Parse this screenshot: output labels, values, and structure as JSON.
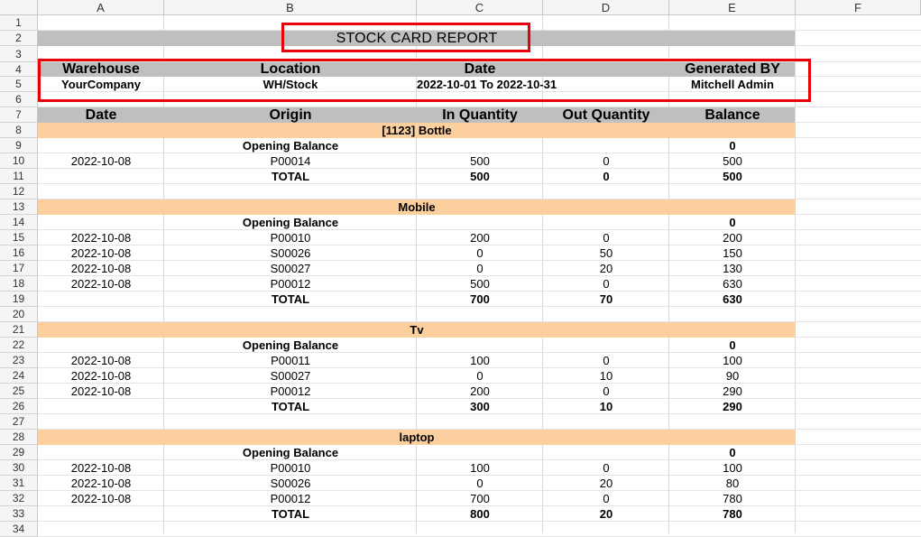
{
  "columns": [
    "A",
    "B",
    "C",
    "D",
    "E",
    "F"
  ],
  "rows": [
    "1",
    "2",
    "3",
    "4",
    "5",
    "6",
    "7",
    "8",
    "9",
    "10",
    "11",
    "12",
    "13",
    "14",
    "15",
    "16",
    "17",
    "18",
    "19",
    "20",
    "21",
    "22",
    "23",
    "24",
    "25",
    "26",
    "27",
    "28",
    "29",
    "30",
    "31",
    "32",
    "33",
    "34"
  ],
  "colors": {
    "header_gray": "#bfbfbf",
    "product_orange": "#fccf9e",
    "annotation_red": "#e8000b"
  },
  "report": {
    "title": "STOCK CARD REPORT",
    "info_headers": [
      "Warehouse",
      "Location",
      "Date",
      "Generated BY"
    ],
    "info_values": [
      "YourCompany",
      "WH/Stock",
      "2022-10-01 To 2022-10-31",
      "Mitchell Admin"
    ],
    "table_headers": [
      "Date",
      "Origin",
      "In Quantity",
      "Out Quantity",
      "Balance"
    ],
    "opening_label": "Opening Balance",
    "total_label": "TOTAL",
    "products": [
      {
        "name": "[1123] Bottle",
        "opening": "0",
        "moves": [
          [
            "2022-10-08",
            "P00014",
            "500",
            "0",
            "500"
          ]
        ],
        "total": [
          "500",
          "0",
          "500"
        ]
      },
      {
        "name": "Mobile",
        "opening": "0",
        "moves": [
          [
            "2022-10-08",
            "P00010",
            "200",
            "0",
            "200"
          ],
          [
            "2022-10-08",
            "S00026",
            "0",
            "50",
            "150"
          ],
          [
            "2022-10-08",
            "S00027",
            "0",
            "20",
            "130"
          ],
          [
            "2022-10-08",
            "P00012",
            "500",
            "0",
            "630"
          ]
        ],
        "total": [
          "700",
          "70",
          "630"
        ]
      },
      {
        "name": "Tv",
        "opening": "0",
        "moves": [
          [
            "2022-10-08",
            "P00011",
            "100",
            "0",
            "100"
          ],
          [
            "2022-10-08",
            "S00027",
            "0",
            "10",
            "90"
          ],
          [
            "2022-10-08",
            "P00012",
            "200",
            "0",
            "290"
          ]
        ],
        "total": [
          "300",
          "10",
          "290"
        ]
      },
      {
        "name": "laptop",
        "opening": "0",
        "moves": [
          [
            "2022-10-08",
            "P00010",
            "100",
            "0",
            "100"
          ],
          [
            "2022-10-08",
            "S00026",
            "0",
            "20",
            "80"
          ],
          [
            "2022-10-08",
            "P00012",
            "700",
            "0",
            "780"
          ]
        ],
        "total": [
          "800",
          "20",
          "780"
        ]
      }
    ]
  }
}
